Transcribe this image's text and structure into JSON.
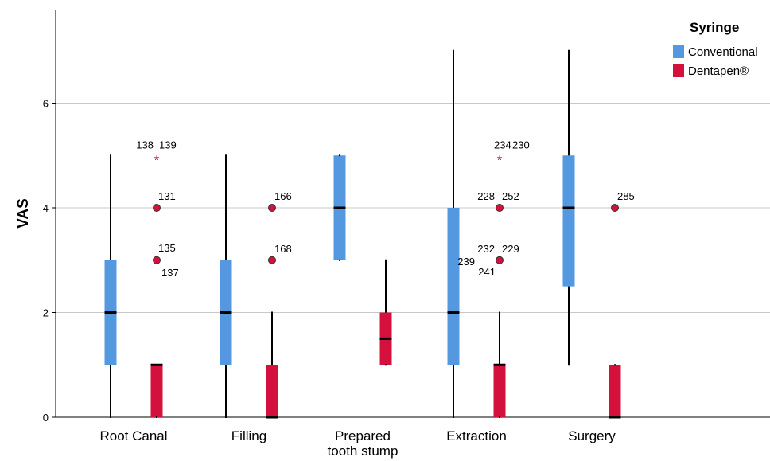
{
  "chart_data": {
    "type": "boxplot",
    "ylabel": "VAS",
    "ylim": [
      0,
      7.5
    ],
    "yticks": [
      0,
      2,
      4,
      6
    ],
    "grid": "horizontal at y ticks",
    "legend": {
      "title": "Syringe",
      "position": "top-right",
      "entries": [
        {
          "name": "Conventional",
          "color": "#5499e0"
        },
        {
          "name": "Dentapen®",
          "color": "#d4103c"
        }
      ]
    },
    "categories": [
      {
        "label": "Root Canal",
        "lines": [
          "Root Canal"
        ]
      },
      {
        "label": "Filling",
        "lines": [
          "Filling"
        ]
      },
      {
        "label": "Prepared tooth stump",
        "lines": [
          "Prepared",
          "tooth stump"
        ]
      },
      {
        "label": "Extraction",
        "lines": [
          "Extraction"
        ]
      },
      {
        "label": "Surgery",
        "lines": [
          "Surgery"
        ]
      }
    ],
    "series": [
      {
        "name": "Conventional",
        "color": "#5499e0",
        "boxes": [
          {
            "min": 0,
            "q1": 1,
            "median": 2,
            "q3": 3,
            "max": 5
          },
          {
            "min": 0,
            "q1": 1,
            "median": 2,
            "q3": 3,
            "max": 5
          },
          {
            "min": 3,
            "q1": 3,
            "median": 4,
            "q3": 5,
            "max": 5
          },
          {
            "min": 0,
            "q1": 1,
            "median": 2,
            "q3": 4,
            "max": 7
          },
          {
            "min": 1,
            "q1": 2.5,
            "median": 4,
            "q3": 5,
            "max": 7
          }
        ]
      },
      {
        "name": "Dentapen®",
        "color": "#d4103c",
        "boxes": [
          {
            "min": 0,
            "q1": 0,
            "median": 1,
            "q3": 1,
            "max": 1,
            "outliers": [
              {
                "y": 4,
                "kind": "circle",
                "labels": [
                  "131"
                ]
              },
              {
                "y": 3,
                "kind": "circle",
                "labels": [
                  "135",
                  "137"
                ]
              }
            ],
            "extremes": [
              {
                "y": 5,
                "kind": "star",
                "labels": [
                  "138",
                  "139"
                ]
              }
            ]
          },
          {
            "min": 0,
            "q1": 0,
            "median": 0,
            "q3": 1,
            "max": 2,
            "outliers": [
              {
                "y": 4,
                "kind": "circle",
                "labels": [
                  "166"
                ]
              },
              {
                "y": 3,
                "kind": "circle",
                "labels": [
                  "168"
                ]
              }
            ]
          },
          {
            "min": 1,
            "q1": 1,
            "median": 1.5,
            "q3": 2,
            "max": 3
          },
          {
            "min": 0,
            "q1": 0,
            "median": 1,
            "q3": 1,
            "max": 2,
            "outliers": [
              {
                "y": 4,
                "kind": "circle",
                "labels": [
                  "228",
                  "252"
                ]
              },
              {
                "y": 3,
                "kind": "circle",
                "labels": [
                  "239",
                  "232",
                  "229",
                  "241"
                ]
              }
            ],
            "extremes": [
              {
                "y": 5,
                "kind": "star",
                "labels": [
                  "234",
                  "230"
                ]
              }
            ]
          },
          {
            "min": 0,
            "q1": 0,
            "median": 0,
            "q3": 1,
            "max": 1,
            "outliers": [
              {
                "y": 4,
                "kind": "circle",
                "labels": [
                  "285"
                ]
              }
            ]
          }
        ]
      }
    ]
  }
}
